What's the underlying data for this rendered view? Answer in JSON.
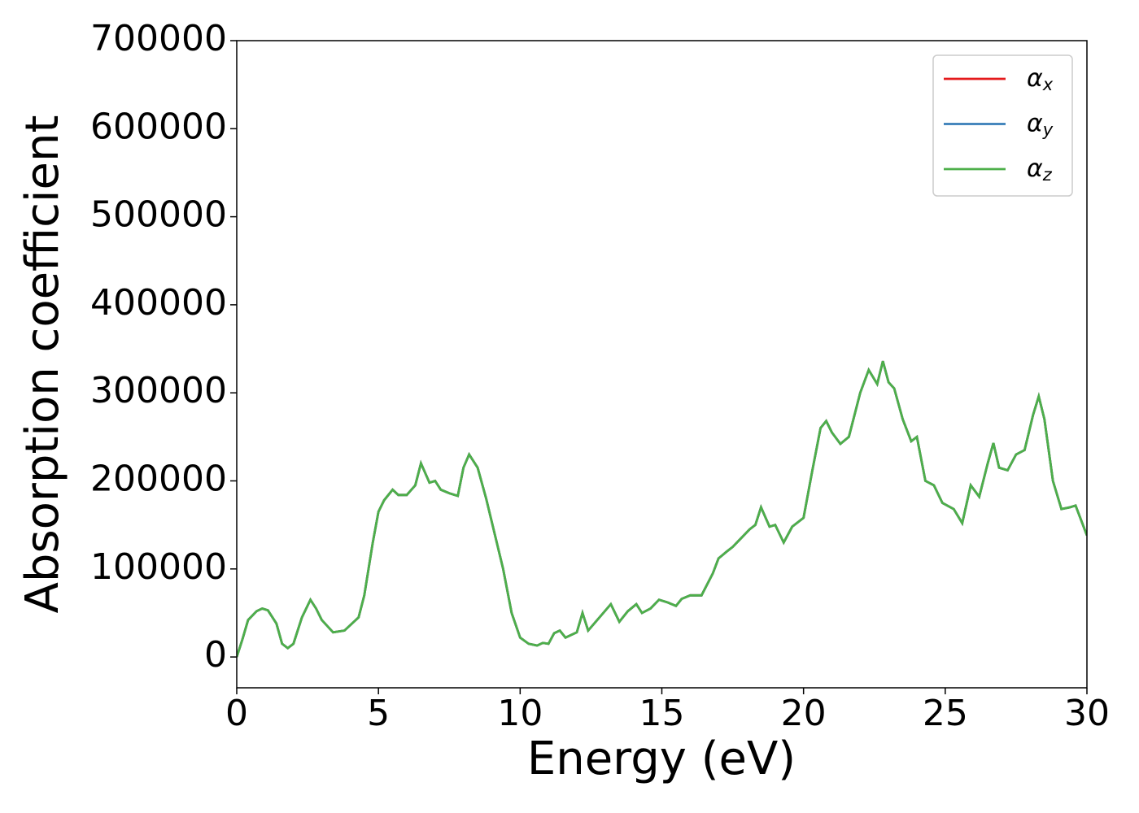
{
  "chart_data": {
    "type": "line",
    "xlabel": "Energy (eV)",
    "ylabel": "Absorption coefficient",
    "x": [
      0,
      0.2,
      0.4,
      0.7,
      0.9,
      1.1,
      1.4,
      1.6,
      1.8,
      2.0,
      2.3,
      2.6,
      2.8,
      3.0,
      3.4,
      3.8,
      4.0,
      4.3,
      4.5,
      4.8,
      5.0,
      5.2,
      5.5,
      5.7,
      6.0,
      6.3,
      6.5,
      6.8,
      7.0,
      7.2,
      7.5,
      7.8,
      8.0,
      8.2,
      8.5,
      8.8,
      9.1,
      9.4,
      9.7,
      10.0,
      10.3,
      10.6,
      10.8,
      11.0,
      11.2,
      11.4,
      11.6,
      12.0,
      12.2,
      12.4,
      12.8,
      13.2,
      13.5,
      13.8,
      14.1,
      14.3,
      14.6,
      14.9,
      15.2,
      15.5,
      15.7,
      16.0,
      16.4,
      16.8,
      17.0,
      17.3,
      17.5,
      17.8,
      18.1,
      18.3,
      18.5,
      18.8,
      19.0,
      19.3,
      19.6,
      20.0,
      20.3,
      20.6,
      20.8,
      21.0,
      21.3,
      21.6,
      21.8,
      22.0,
      22.3,
      22.6,
      22.8,
      23.0,
      23.2,
      23.5,
      23.8,
      24.0,
      24.3,
      24.6,
      24.9,
      25.3,
      25.6,
      25.9,
      26.2,
      26.5,
      26.7,
      26.9,
      27.2,
      27.5,
      27.8,
      28.1,
      28.3,
      28.5,
      28.8,
      29.1,
      29.4,
      29.6,
      30.0
    ],
    "series": [
      {
        "name": "αx",
        "color": "#e41a1c",
        "values": [
          0,
          20000,
          42000,
          52000,
          55000,
          53000,
          38000,
          15000,
          10000,
          15000,
          45000,
          65000,
          55000,
          42000,
          28000,
          30000,
          36000,
          45000,
          70000,
          130000,
          165000,
          178000,
          190000,
          184000,
          184000,
          195000,
          220000,
          198000,
          200000,
          190000,
          186000,
          183000,
          215000,
          230000,
          215000,
          180000,
          140000,
          100000,
          50000,
          22000,
          15000,
          13000,
          16000,
          15000,
          27000,
          30000,
          22000,
          28000,
          50000,
          30000,
          45000,
          60000,
          40000,
          52000,
          60000,
          50000,
          55000,
          65000,
          62000,
          58000,
          66000,
          70000,
          70000,
          95000,
          112000,
          120000,
          125000,
          135000,
          145000,
          150000,
          170000,
          148000,
          150000,
          130000,
          148000,
          158000,
          210000,
          260000,
          268000,
          255000,
          242000,
          250000,
          275000,
          300000,
          326000,
          310000,
          336000,
          312000,
          305000,
          270000,
          245000,
          250000,
          200000,
          195000,
          175000,
          168000,
          152000,
          195000,
          182000,
          220000,
          243000,
          215000,
          212000,
          230000,
          235000,
          275000,
          296000,
          270000,
          200000,
          168000,
          170000,
          172000,
          138000
        ]
      },
      {
        "name": "αy",
        "color": "#377eb8",
        "values": [
          0,
          20000,
          42000,
          52000,
          55000,
          53000,
          38000,
          15000,
          10000,
          15000,
          45000,
          65000,
          55000,
          42000,
          28000,
          30000,
          36000,
          45000,
          70000,
          130000,
          165000,
          178000,
          190000,
          184000,
          184000,
          195000,
          220000,
          198000,
          200000,
          190000,
          186000,
          183000,
          215000,
          230000,
          215000,
          180000,
          140000,
          100000,
          50000,
          22000,
          15000,
          13000,
          16000,
          15000,
          27000,
          30000,
          22000,
          28000,
          50000,
          30000,
          45000,
          60000,
          40000,
          52000,
          60000,
          50000,
          55000,
          65000,
          62000,
          58000,
          66000,
          70000,
          70000,
          95000,
          112000,
          120000,
          125000,
          135000,
          145000,
          150000,
          170000,
          148000,
          150000,
          130000,
          148000,
          158000,
          210000,
          260000,
          268000,
          255000,
          242000,
          250000,
          275000,
          300000,
          326000,
          310000,
          336000,
          312000,
          305000,
          270000,
          245000,
          250000,
          200000,
          195000,
          175000,
          168000,
          152000,
          195000,
          182000,
          220000,
          243000,
          215000,
          212000,
          230000,
          235000,
          275000,
          296000,
          270000,
          200000,
          168000,
          170000,
          172000,
          138000
        ]
      },
      {
        "name": "αz",
        "color": "#4daf4a",
        "values": [
          0,
          20000,
          42000,
          52000,
          55000,
          53000,
          38000,
          15000,
          10000,
          15000,
          45000,
          65000,
          55000,
          42000,
          28000,
          30000,
          36000,
          45000,
          70000,
          130000,
          165000,
          178000,
          190000,
          184000,
          184000,
          195000,
          220000,
          198000,
          200000,
          190000,
          186000,
          183000,
          215000,
          230000,
          215000,
          180000,
          140000,
          100000,
          50000,
          22000,
          15000,
          13000,
          16000,
          15000,
          27000,
          30000,
          22000,
          28000,
          50000,
          30000,
          45000,
          60000,
          40000,
          52000,
          60000,
          50000,
          55000,
          65000,
          62000,
          58000,
          66000,
          70000,
          70000,
          95000,
          112000,
          120000,
          125000,
          135000,
          145000,
          150000,
          170000,
          148000,
          150000,
          130000,
          148000,
          158000,
          210000,
          260000,
          268000,
          255000,
          242000,
          250000,
          275000,
          300000,
          326000,
          310000,
          336000,
          312000,
          305000,
          270000,
          245000,
          250000,
          200000,
          195000,
          175000,
          168000,
          152000,
          195000,
          182000,
          220000,
          243000,
          215000,
          212000,
          230000,
          235000,
          275000,
          296000,
          270000,
          200000,
          168000,
          170000,
          172000,
          138000
        ]
      }
    ],
    "xlim": [
      0,
      30
    ],
    "xticks": [
      0,
      5,
      10,
      15,
      20,
      25,
      30
    ],
    "ylim": [
      -35000,
      700000
    ],
    "yticks": [
      0,
      100000,
      200000,
      300000,
      400000,
      500000,
      600000,
      700000
    ],
    "grid": false,
    "legend": "upper right"
  }
}
